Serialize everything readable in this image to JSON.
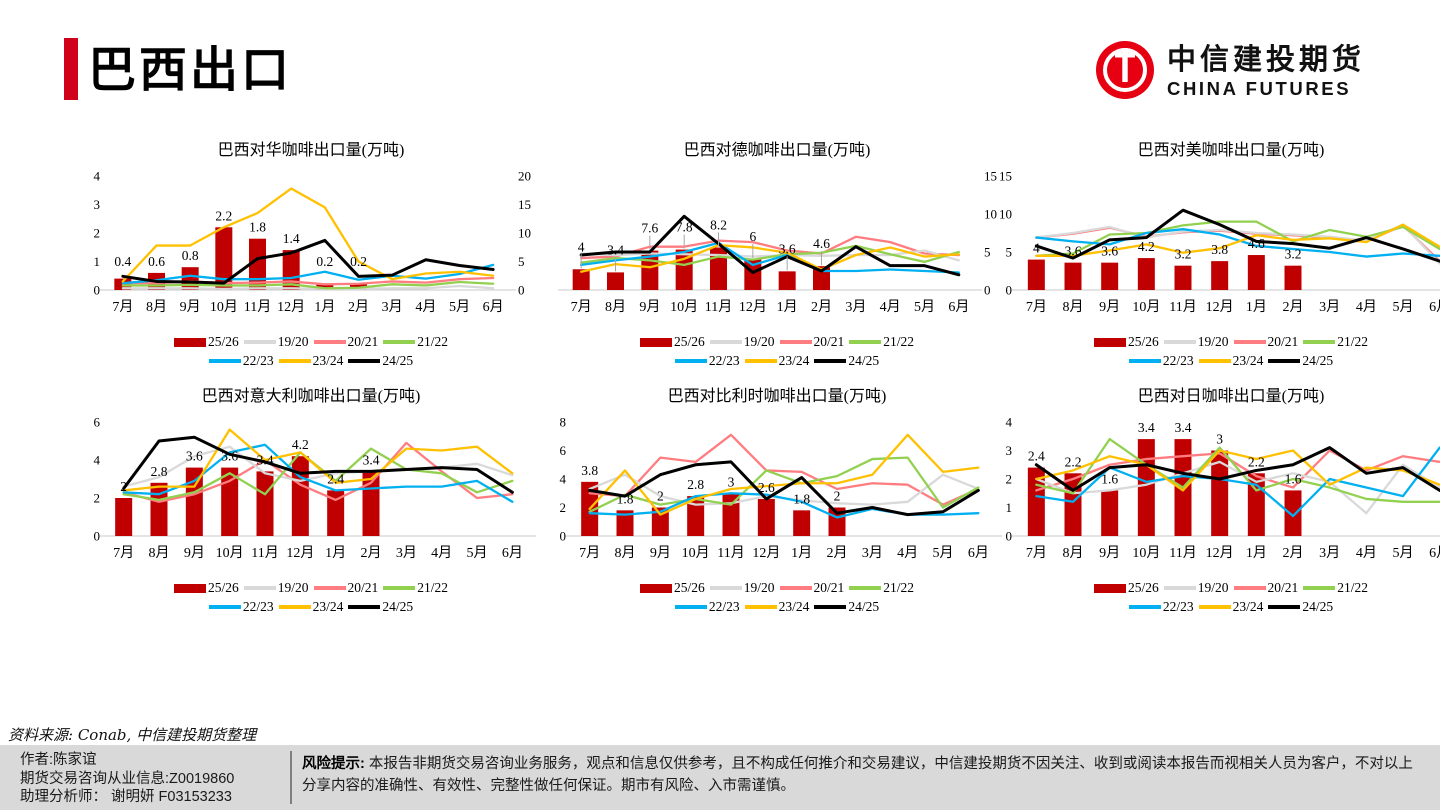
{
  "page": {
    "title": "巴西出口"
  },
  "logo": {
    "cn": "中信建投期货",
    "en": "CHINA FUTURES",
    "brand_red": "#E60012"
  },
  "source_note": "资料来源: Conab, 中信建投期货整理",
  "footer": {
    "author": "作者:陈家谊",
    "license": "期货交易咨询从业信息:Z0019860",
    "assistant": "助理分析师： 谢明妍 F03153233",
    "risk_label": "风险提示:",
    "risk_text": "本报告非期货交易咨询业务服务，观点和信息仅供参考，且不构成任何推介和交易建议，中信建投期货不因关注、收到或阅读本报告而视相关人员为客户，不对以上分享内容的准确性、有效性、完整性做任何保证。期市有风险、入市需谨慎。"
  },
  "series_colors": {
    "25/26": "#C00000",
    "19/20": "#D9D9D9",
    "20/21": "#FF7C80",
    "21/22": "#92D050",
    "22/23": "#00B0F0",
    "23/24": "#FFC000",
    "24/25": "#000000"
  },
  "legend_rows": [
    [
      "25/26",
      "19/20",
      "20/21",
      "21/22"
    ],
    [
      "22/23",
      "23/24",
      "24/25"
    ]
  ],
  "chart_data": [
    {
      "type": "bar+line",
      "title": "巴西对华咖啡出口量(万吨)",
      "categories": [
        "7月",
        "8月",
        "9月",
        "10月",
        "11月",
        "12月",
        "1月",
        "2月",
        "3月",
        "4月",
        "5月",
        "6月"
      ],
      "left_ticks": [
        "0",
        "1",
        "2",
        "3",
        "4"
      ],
      "right_ticks": [
        "0",
        "5",
        "10",
        "15",
        "20"
      ],
      "bar_series_name": "25/26",
      "bar_axis_max": 4,
      "line_axis_max": 20,
      "bar_values": [
        0.4,
        0.6,
        0.8,
        2.2,
        1.8,
        1.4,
        0.2,
        0.2
      ],
      "bar_labels": [
        "0.4",
        "0.6",
        "0.8",
        "2.2",
        "1.8",
        "1.4",
        "0.2",
        "0.2"
      ],
      "line_series": [
        {
          "name": "20/21",
          "values": [
            1.2,
            1.2,
            1.5,
            1.2,
            1.3,
            1.5,
            1.0,
            1.1,
            1.5,
            1.3,
            1.9,
            2.1
          ]
        },
        {
          "name": "19/20",
          "values": [
            0.3,
            0.3,
            0.3,
            0.2,
            0.3,
            0.3,
            0.2,
            0.2,
            0.3,
            0.3,
            0.7,
            0.3
          ]
        },
        {
          "name": "21/22",
          "values": [
            0.8,
            0.8,
            0.9,
            0.8,
            0.8,
            1.0,
            0.3,
            0.4,
            1.0,
            0.8,
            1.4,
            1.1
          ]
        },
        {
          "name": "22/23",
          "values": [
            1.2,
            1.7,
            2.5,
            1.9,
            1.9,
            2.1,
            3.2,
            1.8,
            2.5,
            2.0,
            2.8,
            4.4
          ]
        },
        {
          "name": "23/24",
          "values": [
            1.5,
            7.8,
            7.8,
            11.0,
            13.5,
            17.8,
            14.5,
            5.0,
            1.9,
            2.9,
            3.2,
            2.5
          ]
        },
        {
          "name": "24/25",
          "values": [
            2.4,
            1.5,
            1.4,
            1.2,
            5.5,
            6.5,
            8.7,
            2.4,
            2.6,
            5.3,
            4.3,
            3.6
          ]
        }
      ]
    },
    {
      "type": "bar+line",
      "title": "巴西对德咖啡出口量(万吨)",
      "categories": [
        "7月",
        "8月",
        "9月",
        "10月",
        "11月",
        "12月",
        "1月",
        "2月",
        "3月",
        "4月",
        "5月",
        "6月"
      ],
      "left_ticks": null,
      "right_ticks": [
        "0",
        "5",
        "10",
        "15"
      ],
      "bar_series_name": "25/26",
      "bar_axis_max": 22,
      "line_axis_max": 15,
      "label_leader": true,
      "bar_values": [
        4,
        3.4,
        7.6,
        7.8,
        8.2,
        6,
        3.6,
        4.6
      ],
      "bar_labels": [
        "4",
        "3.4",
        "7.6",
        "7.8",
        "8.2",
        "6",
        "3.6",
        "4.6"
      ],
      "line_series": [
        {
          "name": "20/21",
          "values": [
            4.2,
            4.4,
            5.7,
            5.7,
            6.5,
            6.3,
            5.2,
            4.8,
            7.0,
            6.3,
            4.8,
            4.6
          ]
        },
        {
          "name": "19/20",
          "values": [
            4.8,
            4.6,
            4.8,
            4.7,
            4.6,
            4.4,
            4.6,
            4.5,
            4.6,
            4.6,
            5.2,
            3.9
          ]
        },
        {
          "name": "21/22",
          "values": [
            3.6,
            4.2,
            3.9,
            3.3,
            4.4,
            4.0,
            4.7,
            4.9,
            5.8,
            4.7,
            3.7,
            5.0
          ]
        },
        {
          "name": "22/23",
          "values": [
            3.3,
            3.9,
            4.4,
            5.0,
            6.2,
            3.3,
            4.6,
            2.5,
            2.5,
            2.7,
            2.5,
            2.3
          ]
        },
        {
          "name": "23/24",
          "values": [
            2.4,
            3.4,
            3.0,
            4.1,
            5.9,
            5.6,
            4.9,
            2.7,
            4.6,
            5.6,
            4.4,
            4.7
          ]
        },
        {
          "name": "24/25",
          "values": [
            4.6,
            5.0,
            5.0,
            9.7,
            6.1,
            2.3,
            4.4,
            2.5,
            5.7,
            3.2,
            3.2,
            2.0
          ]
        }
      ]
    },
    {
      "type": "bar+line",
      "title": "巴西对美咖啡出口量(万吨)",
      "categories": [
        "7月",
        "8月",
        "9月",
        "10月",
        "11月",
        "12月",
        "1月",
        "2月",
        "3月",
        "4月",
        "5月",
        "6月"
      ],
      "left_ticks": [
        "0",
        "5",
        "10",
        "15"
      ],
      "right_ticks": null,
      "bar_series_name": "25/26",
      "bar_axis_max": 15,
      "line_axis_max": 15,
      "bar_values": [
        4,
        3.6,
        3.6,
        4.2,
        3.2,
        3.8,
        4.6,
        3.2
      ],
      "bar_labels": [
        "4",
        "3.6",
        "3.6",
        "4.2",
        "3.2",
        "3.8",
        "4.6",
        "3.2"
      ],
      "line_series": [
        {
          "name": "20/21",
          "values": [
            6.9,
            7.4,
            8.2,
            7.0,
            7.6,
            7.8,
            7.4,
            7.2,
            6.9,
            6.4,
            8.5,
            3.8
          ]
        },
        {
          "name": "19/20",
          "values": [
            6.9,
            7.5,
            8.3,
            6.9,
            7.7,
            7.9,
            7.5,
            7.3,
            7.0,
            6.5,
            8.6,
            3.5
          ]
        },
        {
          "name": "21/22",
          "values": [
            4.5,
            4.8,
            7.3,
            7.5,
            8.5,
            9.0,
            9.0,
            6.4,
            7.9,
            7.0,
            8.3,
            5.4
          ]
        },
        {
          "name": "22/23",
          "values": [
            6.9,
            6.4,
            6.0,
            7.5,
            8.0,
            7.3,
            5.8,
            5.4,
            5.0,
            4.4,
            4.8,
            4.5
          ]
        },
        {
          "name": "23/24",
          "values": [
            4.5,
            4.5,
            5.2,
            6.0,
            4.9,
            5.5,
            7.2,
            6.6,
            6.8,
            6.3,
            8.6,
            5.7
          ]
        },
        {
          "name": "24/25",
          "values": [
            5.8,
            4.2,
            6.6,
            6.9,
            10.5,
            8.6,
            6.4,
            6.1,
            5.5,
            6.9,
            5.4,
            3.8
          ]
        }
      ]
    },
    {
      "type": "bar+line",
      "title": "巴西对意大利咖啡出口量(万吨)",
      "categories": [
        "7月",
        "8月",
        "9月",
        "10月",
        "11月",
        "12月",
        "1月",
        "2月",
        "3月",
        "4月",
        "5月",
        "6月"
      ],
      "left_ticks": [
        "0",
        "2",
        "4",
        "6"
      ],
      "right_ticks": null,
      "bar_series_name": "25/26",
      "bar_axis_max": 6,
      "line_axis_max": 6,
      "bar_values": [
        2,
        2.8,
        3.6,
        3.6,
        3.4,
        4.2,
        2.4,
        3.4
      ],
      "bar_labels": [
        "2",
        "2.8",
        "3.6",
        "3.6",
        "3.4",
        "4.2",
        "2.4",
        "3.4"
      ],
      "line_series": [
        {
          "name": "20/21",
          "values": [
            2.3,
            1.8,
            2.2,
            2.9,
            4.0,
            2.7,
            1.9,
            2.8,
            4.9,
            3.4,
            2.0,
            2.2
          ]
        },
        {
          "name": "19/20",
          "values": [
            2.6,
            3.1,
            4.2,
            4.7,
            3.3,
            2.9,
            3.3,
            3.4,
            3.5,
            3.6,
            3.8,
            3.2
          ]
        },
        {
          "name": "21/22",
          "values": [
            2.2,
            1.9,
            2.3,
            3.3,
            2.2,
            4.4,
            2.9,
            4.6,
            3.5,
            3.3,
            2.3,
            2.9
          ]
        },
        {
          "name": "22/23",
          "values": [
            2.3,
            2.2,
            2.9,
            4.4,
            4.8,
            3.1,
            2.4,
            2.5,
            2.6,
            2.6,
            2.9,
            1.8
          ]
        },
        {
          "name": "23/24",
          "values": [
            2.4,
            2.6,
            2.6,
            5.6,
            4.0,
            4.4,
            2.8,
            3.0,
            4.6,
            4.5,
            4.7,
            3.3
          ]
        },
        {
          "name": "24/25",
          "values": [
            2.5,
            5.0,
            5.2,
            4.3,
            3.9,
            3.3,
            3.4,
            3.4,
            3.5,
            3.6,
            3.5,
            2.3
          ]
        }
      ]
    },
    {
      "type": "bar+line",
      "title": "巴西对比利时咖啡出口量(万吨)",
      "categories": [
        "7月",
        "8月",
        "9月",
        "10月",
        "11月",
        "12月",
        "1月",
        "2月",
        "3月",
        "4月",
        "5月",
        "6月"
      ],
      "left_ticks": [
        "0",
        "2",
        "4",
        "6",
        "8"
      ],
      "right_ticks": null,
      "bar_series_name": "25/26",
      "bar_axis_max": 8,
      "line_axis_max": 8,
      "bar_values": [
        3.8,
        1.8,
        2,
        2.8,
        3,
        2.6,
        1.8,
        2
      ],
      "bar_labels": [
        "3.8",
        "1.8",
        "2",
        "2.8",
        "3",
        "2.6",
        "1.8",
        "2"
      ],
      "line_series": [
        {
          "name": "20/21",
          "values": [
            3.0,
            2.8,
            5.5,
            5.2,
            7.1,
            4.6,
            4.5,
            3.3,
            3.7,
            3.6,
            2.2,
            3.3
          ]
        },
        {
          "name": "19/20",
          "values": [
            3.3,
            4.3,
            2.8,
            2.2,
            2.3,
            2.8,
            2.5,
            2.3,
            2.2,
            2.4,
            4.3,
            3.3
          ]
        },
        {
          "name": "21/22",
          "values": [
            1.7,
            2.9,
            2.2,
            2.6,
            2.2,
            4.6,
            3.7,
            4.2,
            5.4,
            5.5,
            2.0,
            3.4
          ]
        },
        {
          "name": "22/23",
          "values": [
            1.6,
            1.5,
            1.7,
            2.8,
            3.0,
            2.9,
            2.4,
            1.3,
            1.9,
            1.5,
            1.5,
            1.6
          ]
        },
        {
          "name": "23/24",
          "values": [
            1.9,
            4.6,
            1.5,
            2.6,
            3.3,
            3.5,
            3.7,
            3.7,
            4.3,
            7.1,
            4.5,
            4.8
          ]
        },
        {
          "name": "24/25",
          "values": [
            3.2,
            2.8,
            4.3,
            5.0,
            5.2,
            2.6,
            4.1,
            1.6,
            2.0,
            1.5,
            1.7,
            3.2
          ]
        }
      ]
    },
    {
      "type": "bar+line",
      "title": "巴西对日咖啡出口量(万吨)",
      "categories": [
        "7月",
        "8月",
        "9月",
        "10月",
        "11月",
        "12月",
        "1月",
        "2月",
        "3月",
        "4月",
        "5月",
        "6月"
      ],
      "left_ticks": [
        "0",
        "1",
        "2",
        "3",
        "4"
      ],
      "right_ticks": null,
      "bar_series_name": "25/26",
      "bar_axis_max": 4,
      "line_axis_max": 4,
      "bar_values": [
        2.4,
        2.2,
        1.6,
        3.4,
        3.4,
        3,
        2.2,
        1.6
      ],
      "bar_labels": [
        "2.4",
        "2.2",
        "1.6",
        "3.4",
        "3.4",
        "3",
        "2.2",
        "1.6"
      ],
      "line_series": [
        {
          "name": "20/21",
          "values": [
            1.6,
            2.0,
            2.5,
            2.7,
            2.8,
            2.9,
            2.1,
            1.7,
            3.0,
            2.3,
            2.8,
            2.6
          ]
        },
        {
          "name": "19/20",
          "values": [
            2.0,
            1.5,
            1.6,
            1.8,
            2.2,
            2.6,
            1.9,
            2.2,
            1.9,
            0.8,
            2.5,
            1.7
          ]
        },
        {
          "name": "21/22",
          "values": [
            1.8,
            1.5,
            3.4,
            2.5,
            1.7,
            3.1,
            1.6,
            2.0,
            1.7,
            1.3,
            1.2,
            1.2
          ]
        },
        {
          "name": "22/23",
          "values": [
            1.4,
            1.2,
            2.4,
            1.9,
            2.1,
            2.0,
            1.8,
            0.7,
            2.0,
            1.7,
            1.4,
            3.1
          ]
        },
        {
          "name": "23/24",
          "values": [
            2.0,
            2.3,
            2.8,
            2.5,
            1.6,
            3.0,
            2.7,
            3.0,
            1.8,
            2.4,
            2.3,
            1.8
          ]
        },
        {
          "name": "24/25",
          "values": [
            2.5,
            1.6,
            2.4,
            2.5,
            2.2,
            2.0,
            2.3,
            2.5,
            3.1,
            2.2,
            2.4,
            1.6
          ]
        }
      ]
    }
  ]
}
